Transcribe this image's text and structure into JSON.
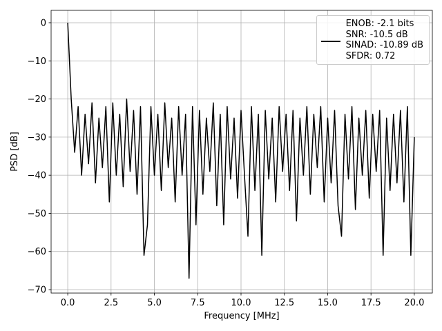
{
  "chart_data": {
    "type": "line",
    "xlabel": "Frequency [MHz]",
    "ylabel": "PSD [dB]",
    "x": [
      0,
      0.2,
      0.4,
      0.6,
      0.8,
      1,
      1.2,
      1.4,
      1.6,
      1.8,
      2,
      2.2,
      2.4,
      2.6,
      2.8,
      3,
      3.2,
      3.4,
      3.6,
      3.8,
      4,
      4.2,
      4.4,
      4.6,
      4.8,
      5,
      5.2,
      5.4,
      5.6,
      5.8,
      6,
      6.2,
      6.4,
      6.6,
      6.8,
      7,
      7.2,
      7.4,
      7.6,
      7.8,
      8,
      8.2,
      8.4,
      8.6,
      8.8,
      9,
      9.2,
      9.4,
      9.6,
      9.8,
      10,
      10.2,
      10.4,
      10.6,
      10.8,
      11,
      11.2,
      11.4,
      11.6,
      11.8,
      12,
      12.2,
      12.4,
      12.6,
      12.8,
      13,
      13.2,
      13.4,
      13.6,
      13.8,
      14,
      14.2,
      14.4,
      14.6,
      14.8,
      15,
      15.2,
      15.4,
      15.6,
      15.8,
      16,
      16.2,
      16.4,
      16.6,
      16.8,
      17,
      17.2,
      17.4,
      17.6,
      17.8,
      18,
      18.2,
      18.4,
      18.6,
      18.8,
      19,
      19.2,
      19.4,
      19.6,
      19.8,
      20
    ],
    "series": [
      {
        "name": "ENOB: -2.1 bits\nSNR: -10.5 dB\nSINAD: -10.89 dB\nSFDR: 0.72",
        "color": "#000000",
        "values": [
          0,
          -20,
          -34,
          -22,
          -40,
          -24,
          -37,
          -21,
          -42,
          -25,
          -38,
          -22,
          -47,
          -21,
          -40,
          -24,
          -43,
          -20,
          -39,
          -23,
          -45,
          -22,
          -61,
          -53,
          -22,
          -40,
          -24,
          -44,
          -21,
          -38,
          -25,
          -47,
          -22,
          -40,
          -24,
          -67,
          -22,
          -53,
          -23,
          -45,
          -25,
          -39,
          -21,
          -48,
          -24,
          -53,
          -22,
          -41,
          -25,
          -46,
          -23,
          -40,
          -56,
          -22,
          -44,
          -24,
          -61,
          -23,
          -41,
          -25,
          -47,
          -22,
          -39,
          -24,
          -44,
          -23,
          -52,
          -25,
          -40,
          -22,
          -45,
          -24,
          -38,
          -22,
          -47,
          -25,
          -42,
          -23,
          -48,
          -56,
          -24,
          -41,
          -22,
          -49,
          -25,
          -40,
          -23,
          -46,
          -24,
          -39,
          -23,
          -61,
          -25,
          -44,
          -24,
          -42,
          -23,
          -47,
          -22,
          -61,
          -30
        ]
      }
    ],
    "xlim": [
      -0.96,
      21.04
    ],
    "ylim": [
      -70.9,
      3.25
    ],
    "xticks": [
      {
        "value": 0,
        "label": "0.0"
      },
      2.5,
      {
        "value": 5,
        "label": "5.0"
      },
      7.5,
      {
        "value": 10,
        "label": "10.0"
      },
      12.5,
      {
        "value": 15,
        "label": "15.0"
      },
      17.5,
      {
        "value": 20,
        "label": "20.0"
      }
    ],
    "yticks": [
      0,
      {
        "value": -10,
        "label": "−10"
      },
      {
        "value": -20,
        "label": "−20"
      },
      {
        "value": -30,
        "label": "−30"
      },
      {
        "value": -40,
        "label": "−40"
      },
      {
        "value": -50,
        "label": "−50"
      },
      {
        "value": -60,
        "label": "−60"
      },
      {
        "value": -70,
        "label": "−70"
      }
    ],
    "grid": true,
    "legend": "upper right"
  }
}
